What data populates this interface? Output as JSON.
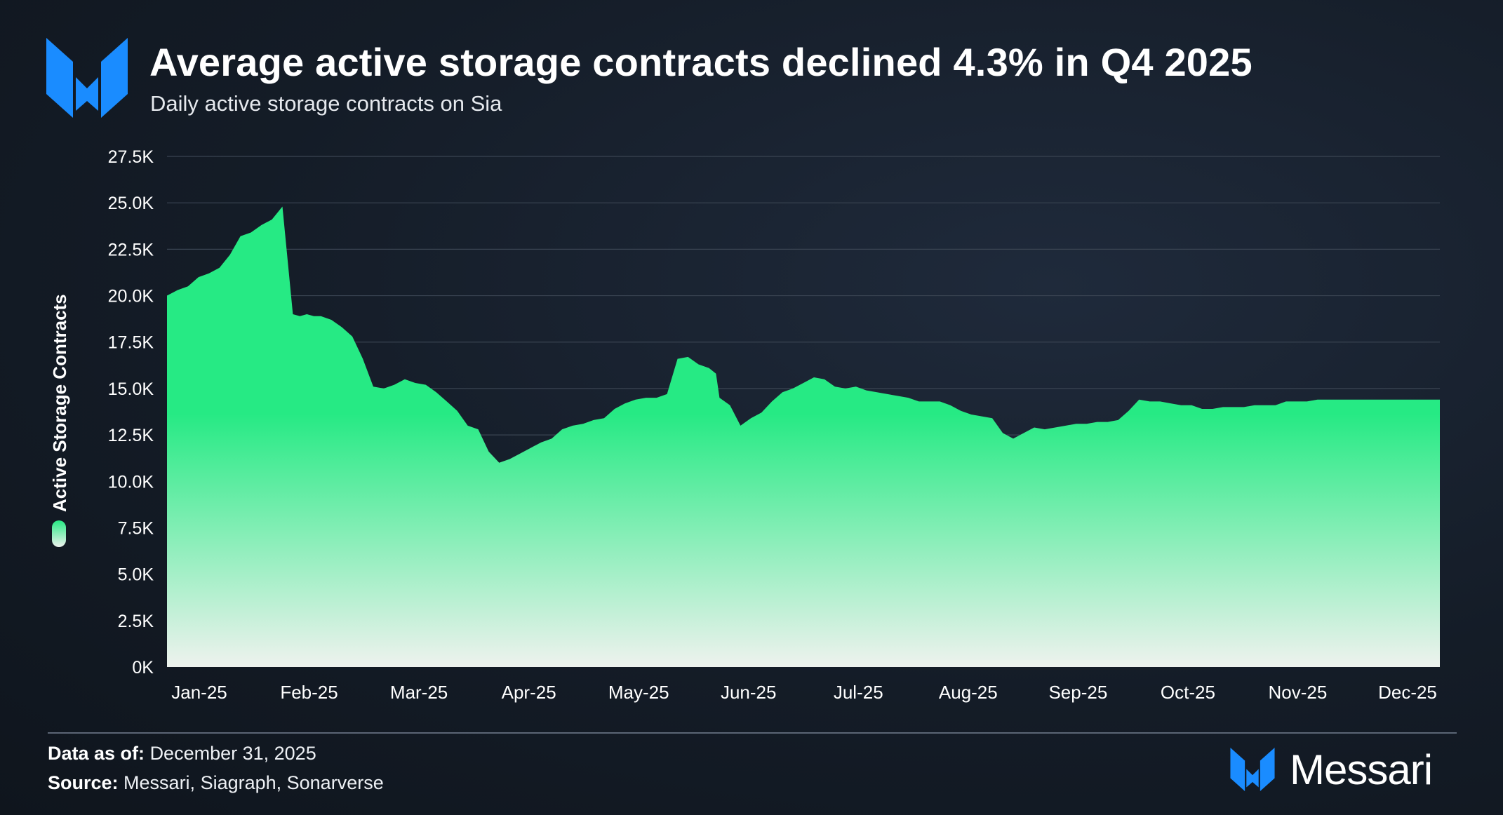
{
  "header": {
    "title": "Average active storage contracts declined 4.3% in Q4 2025",
    "subtitle": "Daily active storage contracts on Sia"
  },
  "colors": {
    "accent_green": "#26ea84",
    "fade_white": "#eef2ee",
    "grid": "#3a4452",
    "brand_blue": "#1a8cff"
  },
  "legend": {
    "icon": "green-pill-icon",
    "label": "Active Storage Contracts"
  },
  "chart_data": {
    "type": "area",
    "title": "Average active storage contracts declined 4.3% in Q4 2025",
    "subtitle": "Daily active storage contracts on Sia",
    "xlabel": "",
    "ylabel": "Active Storage Contracts",
    "ylim": [
      0,
      27500
    ],
    "yticks": [
      0,
      2500,
      5000,
      7500,
      10000,
      12500,
      15000,
      17500,
      20000,
      22500,
      25000,
      27500
    ],
    "ytick_labels": [
      "0K",
      "2.5K",
      "5.0K",
      "7.5K",
      "10.0K",
      "12.5K",
      "15.0K",
      "17.5K",
      "20.0K",
      "22.5K",
      "25.0K",
      "27.5K"
    ],
    "xtick_labels": [
      "Jan-25",
      "Feb-25",
      "Mar-25",
      "Apr-25",
      "May-25",
      "Jun-25",
      "Jul-25",
      "Aug-25",
      "Sep-25",
      "Oct-25",
      "Nov-25",
      "Dec-25"
    ],
    "xlim_days": [
      0,
      364
    ],
    "grid": true,
    "series": [
      {
        "name": "Active Storage Contracts",
        "x_day": [
          0,
          3,
          6,
          9,
          12,
          15,
          18,
          21,
          24,
          27,
          30,
          33,
          36,
          38,
          40,
          42,
          44,
          47,
          50,
          53,
          56,
          59,
          62,
          65,
          68,
          71,
          74,
          77,
          80,
          83,
          86,
          89,
          92,
          95,
          98,
          101,
          104,
          107,
          110,
          113,
          116,
          119,
          122,
          125,
          128,
          131,
          134,
          137,
          140,
          143,
          146,
          149,
          152,
          155,
          157,
          158,
          161,
          164,
          167,
          170,
          173,
          176,
          179,
          182,
          185,
          188,
          191,
          194,
          197,
          200,
          203,
          206,
          209,
          212,
          215,
          218,
          221,
          224,
          227,
          230,
          233,
          236,
          239,
          242,
          245,
          248,
          251,
          254,
          257,
          260,
          263,
          266,
          269,
          272,
          275,
          278,
          281,
          284,
          287,
          290,
          293,
          296,
          299,
          302,
          305,
          308,
          311,
          314,
          317,
          320,
          323,
          326,
          329,
          332,
          335,
          338,
          341,
          344,
          347,
          350,
          353,
          356,
          359,
          362,
          364
        ],
        "values": [
          20000,
          20300,
          20500,
          21000,
          21200,
          21500,
          22200,
          23200,
          23400,
          23800,
          24100,
          24800,
          19000,
          18900,
          19000,
          18900,
          18900,
          18700,
          18300,
          17800,
          16600,
          15100,
          15000,
          15200,
          15500,
          15300,
          15200,
          14800,
          14300,
          13800,
          13000,
          12800,
          11600,
          11000,
          11200,
          11500,
          11800,
          12100,
          12300,
          12800,
          13000,
          13100,
          13300,
          13400,
          13900,
          14200,
          14400,
          14500,
          14500,
          14700,
          16600,
          16700,
          16300,
          16100,
          15800,
          14500,
          14100,
          13000,
          13400,
          13700,
          14300,
          14800,
          15000,
          15300,
          15600,
          15500,
          15100,
          15000,
          15100,
          14900,
          14800,
          14700,
          14600,
          14500,
          14300,
          14300,
          14300,
          14100,
          13800,
          13600,
          13500,
          13400,
          12600,
          12300,
          12600,
          12900,
          12800,
          12900,
          13000,
          13100,
          13100,
          13200,
          13200,
          13300,
          13800,
          14400,
          14300,
          14300,
          14200,
          14100,
          14100,
          13900,
          13900,
          14000,
          14000,
          14000,
          14100,
          14100,
          14100,
          14300,
          14300,
          14300,
          14400,
          14400,
          14400,
          14400,
          14400,
          14400,
          14400,
          14400,
          14400,
          14400,
          14400,
          14400,
          14400
        ]
      }
    ]
  },
  "footer": {
    "date_label": "Data as of:",
    "date_value": "December 31, 2025",
    "source_label": "Source:",
    "source_value": "Messari, Siagraph, Sonarverse"
  },
  "brand": {
    "name": "Messari",
    "icon": "messari-logo-icon"
  }
}
